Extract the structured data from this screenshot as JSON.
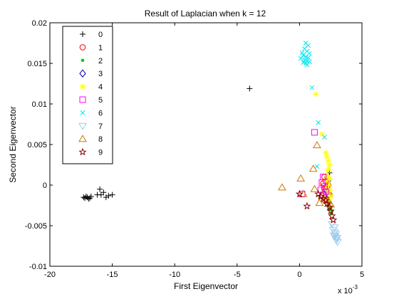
{
  "chart_data": {
    "type": "scatter",
    "title": "Result of Laplacian when k = 12",
    "xlabel": "First Eigenvector",
    "ylabel": "Second Eigenvector",
    "x_scale_label": "x 10",
    "x_scale_exponent": "-3",
    "xlim": [
      -20,
      5
    ],
    "ylim": [
      -0.01,
      0.02
    ],
    "xticks": [
      -20,
      -15,
      -10,
      -5,
      0,
      5
    ],
    "xtick_labels": [
      "-20",
      "-15",
      "-10",
      "-5",
      "0",
      "5"
    ],
    "yticks": [
      -0.01,
      -0.005,
      0,
      0.005,
      0.01,
      0.015,
      0.02
    ],
    "ytick_labels": [
      "-0.01",
      "-0.005",
      "0",
      "0.005",
      "0.01",
      "0.015",
      "0.02"
    ],
    "legend_position": "top-left",
    "series": [
      {
        "name": "0",
        "marker": "plus",
        "color": "#000000",
        "points": [
          [
            -17.2,
            -0.0016
          ],
          [
            -17.0,
            -0.0015
          ],
          [
            -16.9,
            -0.0017
          ],
          [
            -17.1,
            -0.0014
          ],
          [
            -16.8,
            -0.0016
          ],
          [
            -17.3,
            -0.0015
          ],
          [
            -16.7,
            -0.0014
          ],
          [
            -16.2,
            -0.0012
          ],
          [
            -16.0,
            -0.0005
          ],
          [
            -15.9,
            -0.0012
          ],
          [
            -15.7,
            -0.0009
          ],
          [
            -15.5,
            -0.0015
          ],
          [
            -15.3,
            -0.0013
          ],
          [
            -15.0,
            -0.0012
          ],
          [
            -4.0,
            0.0119
          ],
          [
            2.4,
            0.0015
          ],
          [
            2.3,
            0.0005
          ],
          [
            2.2,
            0.001
          ]
        ]
      },
      {
        "name": "1",
        "marker": "circle",
        "color": "#ff0000",
        "points": [
          [
            2.0,
            0.001
          ],
          [
            2.1,
            0.0005
          ],
          [
            1.9,
            0.0002
          ],
          [
            2.2,
            -0.0002
          ],
          [
            2.0,
            -0.0005
          ],
          [
            2.3,
            0.0
          ],
          [
            2.1,
            -0.0008
          ],
          [
            2.4,
            -0.0012
          ]
        ]
      },
      {
        "name": "2",
        "marker": "dot",
        "color": "#00cc00",
        "points": [
          [
            2.3,
            -0.0025
          ],
          [
            2.4,
            -0.003
          ],
          [
            2.5,
            -0.0028
          ],
          [
            2.6,
            -0.0032
          ],
          [
            2.35,
            -0.0022
          ],
          [
            2.55,
            -0.0035
          ]
        ]
      },
      {
        "name": "3",
        "marker": "diamond",
        "color": "#0000aa",
        "points": [
          [
            2.2,
            -0.0008
          ],
          [
            2.3,
            -0.0012
          ]
        ]
      },
      {
        "name": "4",
        "marker": "star",
        "color": "#ffff00",
        "points": [
          [
            1.3,
            0.0112
          ],
          [
            1.8,
            0.0063
          ],
          [
            2.1,
            0.004
          ],
          [
            2.2,
            0.0035
          ],
          [
            2.3,
            0.003
          ],
          [
            2.4,
            0.0025
          ],
          [
            2.35,
            0.002
          ],
          [
            2.25,
            0.0018
          ],
          [
            2.2,
            0.0012
          ],
          [
            2.3,
            0.001
          ],
          [
            2.4,
            0.0008
          ],
          [
            2.15,
            0.0005
          ],
          [
            2.35,
            0.0
          ],
          [
            2.2,
            -0.0004
          ],
          [
            2.45,
            -0.0006
          ],
          [
            2.3,
            -0.001
          ],
          [
            2.5,
            -0.0014
          ],
          [
            2.4,
            -0.0018
          ]
        ]
      },
      {
        "name": "5",
        "marker": "square",
        "color": "#ff00ff",
        "points": [
          [
            1.2,
            0.0065
          ],
          [
            1.9,
            0.001
          ],
          [
            1.8,
            0.0003
          ],
          [
            2.0,
            -0.0002
          ],
          [
            1.7,
            -0.0006
          ],
          [
            2.1,
            -0.0008
          ],
          [
            0.2,
            -0.0011
          ],
          [
            1.9,
            -0.0012
          ]
        ]
      },
      {
        "name": "6",
        "marker": "x",
        "color": "#00e5ee",
        "points": [
          [
            0.5,
            0.0175
          ],
          [
            0.7,
            0.0172
          ],
          [
            0.4,
            0.0168
          ],
          [
            0.6,
            0.0165
          ],
          [
            0.2,
            0.0163
          ],
          [
            0.8,
            0.0162
          ],
          [
            0.3,
            0.016
          ],
          [
            0.5,
            0.0158
          ],
          [
            0.7,
            0.0157
          ],
          [
            0.1,
            0.0156
          ],
          [
            0.4,
            0.0154
          ],
          [
            0.6,
            0.0153
          ],
          [
            0.8,
            0.0152
          ],
          [
            0.3,
            0.0151
          ],
          [
            0.5,
            0.015
          ],
          [
            0.6,
            0.0148
          ],
          [
            1.0,
            0.012
          ],
          [
            1.5,
            0.0077
          ],
          [
            2.0,
            0.0059
          ],
          [
            1.4,
            0.0023
          ]
        ]
      },
      {
        "name": "7",
        "marker": "triangle-down",
        "color": "#99ccee",
        "points": [
          [
            2.7,
            -0.0055
          ],
          [
            2.8,
            -0.0058
          ],
          [
            2.9,
            -0.006
          ],
          [
            2.85,
            -0.0063
          ],
          [
            3.0,
            -0.0065
          ],
          [
            2.95,
            -0.0068
          ],
          [
            3.05,
            -0.007
          ],
          [
            2.9,
            -0.0066
          ],
          [
            2.75,
            -0.0062
          ],
          [
            2.8,
            -0.0052
          ],
          [
            2.6,
            -0.0048
          ]
        ]
      },
      {
        "name": "8",
        "marker": "triangle-up",
        "color": "#cc7700",
        "points": [
          [
            1.4,
            0.0049
          ],
          [
            1.1,
            0.002
          ],
          [
            0.1,
            0.0008
          ],
          [
            -1.4,
            -0.0003
          ],
          [
            1.2,
            -0.0005
          ],
          [
            0.3,
            -0.0011
          ],
          [
            1.8,
            -0.0013
          ],
          [
            2.1,
            -0.0018
          ],
          [
            2.3,
            -0.002
          ],
          [
            1.6,
            -0.0022
          ],
          [
            2.5,
            -0.0024
          ]
        ]
      },
      {
        "name": "9",
        "marker": "pentagram",
        "color": "#880000",
        "points": [
          [
            0.0,
            -0.0011
          ],
          [
            1.5,
            -0.0011
          ],
          [
            1.7,
            -0.0014
          ],
          [
            1.9,
            -0.0017
          ],
          [
            2.1,
            -0.0019
          ],
          [
            0.6,
            -0.0026
          ],
          [
            2.2,
            -0.0023
          ],
          [
            2.4,
            -0.0027
          ],
          [
            2.5,
            -0.0032
          ],
          [
            2.6,
            -0.0038
          ],
          [
            2.7,
            -0.0043
          ]
        ]
      }
    ]
  }
}
